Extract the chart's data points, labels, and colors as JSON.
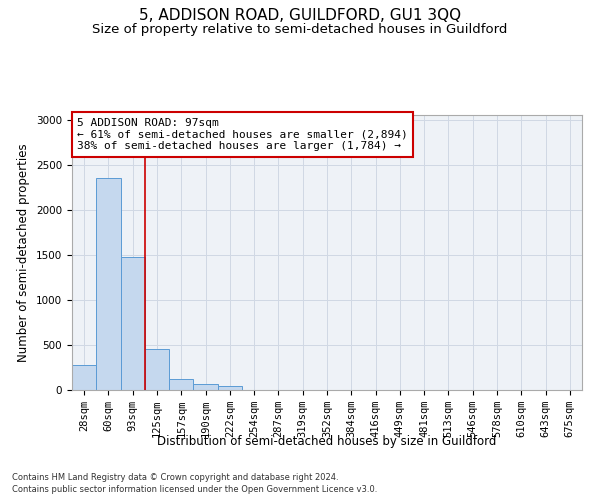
{
  "title": "5, ADDISON ROAD, GUILDFORD, GU1 3QQ",
  "subtitle": "Size of property relative to semi-detached houses in Guildford",
  "xlabel": "Distribution of semi-detached houses by size in Guildford",
  "ylabel": "Number of semi-detached properties",
  "footnote1": "Contains HM Land Registry data © Crown copyright and database right 2024.",
  "footnote2": "Contains public sector information licensed under the Open Government Licence v3.0.",
  "bin_labels": [
    "28sqm",
    "60sqm",
    "93sqm",
    "125sqm",
    "157sqm",
    "190sqm",
    "222sqm",
    "254sqm",
    "287sqm",
    "319sqm",
    "352sqm",
    "384sqm",
    "416sqm",
    "449sqm",
    "481sqm",
    "513sqm",
    "546sqm",
    "578sqm",
    "610sqm",
    "643sqm",
    "675sqm"
  ],
  "bar_values": [
    280,
    2350,
    1470,
    460,
    120,
    65,
    40,
    5,
    0,
    0,
    0,
    0,
    0,
    0,
    0,
    0,
    0,
    0,
    0,
    0,
    0
  ],
  "bar_color": "#c5d8ee",
  "bar_edge_color": "#5b9bd5",
  "grid_color": "#d0d8e4",
  "background_color": "#ffffff",
  "plot_bg_color": "#eef2f7",
  "annotation_line1": "5 ADDISON ROAD: 97sqm",
  "annotation_line2": "← 61% of semi-detached houses are smaller (2,894)",
  "annotation_line3": "38% of semi-detached houses are larger (1,784) →",
  "annotation_box_color": "#ffffff",
  "annotation_box_edge": "#cc0000",
  "vline_color": "#cc0000",
  "vline_x": 2.5,
  "ylim": [
    0,
    3050
  ],
  "yticks": [
    0,
    500,
    1000,
    1500,
    2000,
    2500,
    3000
  ],
  "title_fontsize": 11,
  "subtitle_fontsize": 9.5,
  "axis_label_fontsize": 8.5,
  "tick_fontsize": 7.5,
  "annotation_fontsize": 8,
  "footnote_fontsize": 6
}
